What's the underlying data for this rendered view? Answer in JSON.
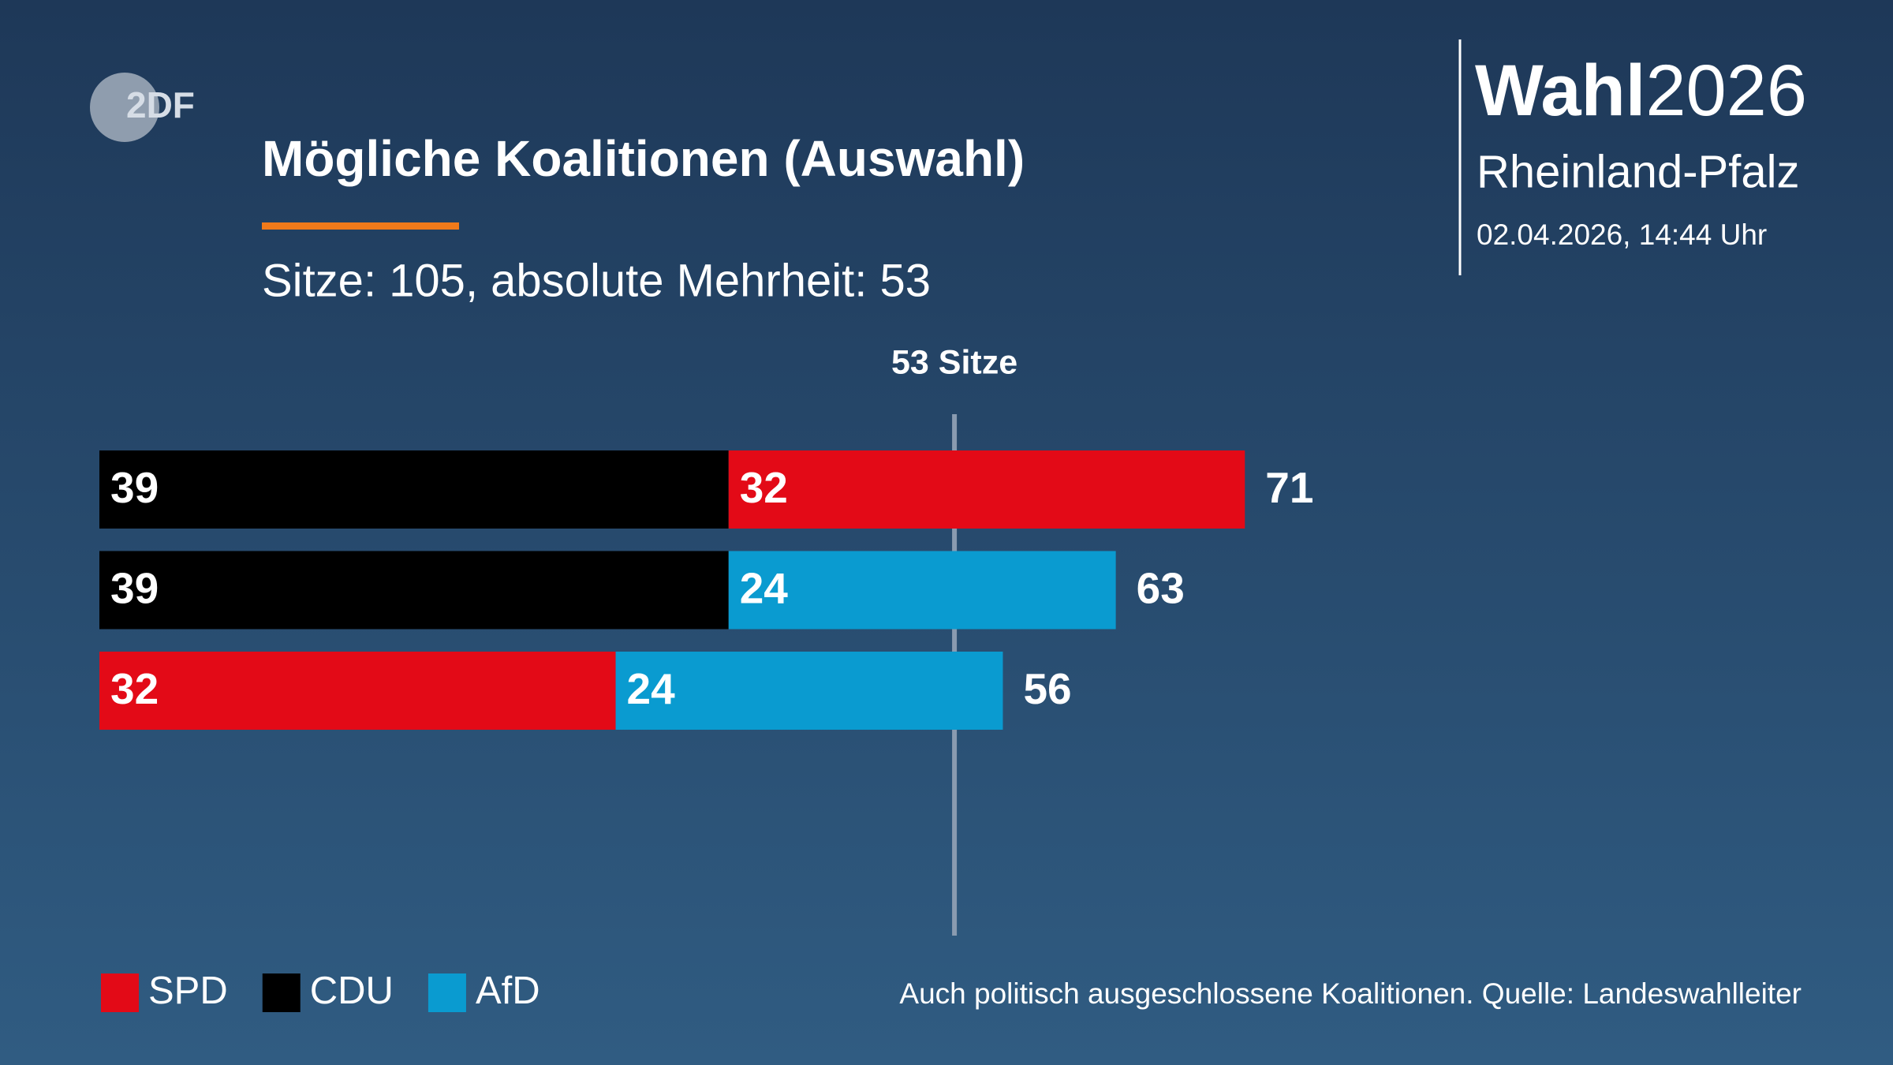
{
  "logo": "2DF",
  "header": {
    "brand": "Wahl",
    "year": "2026",
    "region": "Rheinland-Pfalz",
    "timestamp": "02.04.2026, 14:44 Uhr"
  },
  "chart_data": {
    "type": "stacked-barh",
    "title": "Mögliche Koalitionen (Auswahl)",
    "subtitle": "Sitze: 105, absolute Mehrheit: 53",
    "series": [
      {
        "name": "SPD",
        "color": "#e30a17"
      },
      {
        "name": "CDU",
        "color": "#000000"
      },
      {
        "name": "AfD",
        "color": "#0a9bd0"
      }
    ],
    "rows": [
      {
        "segments": [
          {
            "series": 1,
            "value": 39
          },
          {
            "series": 0,
            "value": 32
          }
        ],
        "total": 71
      },
      {
        "segments": [
          {
            "series": 1,
            "value": 39
          },
          {
            "series": 2,
            "value": 24
          }
        ],
        "total": 63
      },
      {
        "segments": [
          {
            "series": 0,
            "value": 32
          },
          {
            "series": 2,
            "value": 24
          }
        ],
        "total": 56
      }
    ],
    "xlim": [
      0,
      110
    ],
    "threshold": 53,
    "threshold_label": "53 Sitze",
    "note": "Auch politisch ausgeschlossene Koalitionen. Quelle: Landeswahlleiter"
  }
}
